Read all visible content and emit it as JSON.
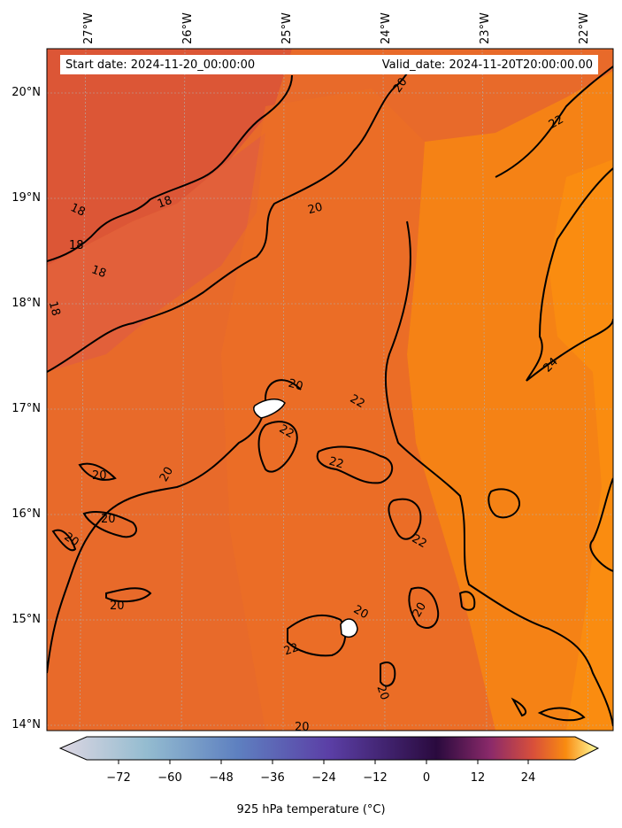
{
  "header": {
    "start_date": "Start date: 2024-11-20_00:00:00",
    "valid_date": "Valid_date: 2024-11-20T20:00:00.00"
  },
  "map": {
    "lat_labels": [
      "20°N",
      "19°N",
      "18°N",
      "17°N",
      "16°N",
      "15°N",
      "14°N"
    ],
    "lon_labels": [
      "27°W",
      "26°W",
      "25°W",
      "24°W",
      "23°W",
      "22°W"
    ],
    "contour_labels": [
      "20",
      "22",
      "18",
      "18",
      "18",
      "18",
      "18",
      "20",
      "20",
      "22",
      "20",
      "22",
      "22",
      "20",
      "20",
      "20",
      "20",
      "22",
      "20",
      "20",
      "20",
      "20",
      "24",
      "22",
      "20"
    ],
    "colors": {
      "cold_region": "#d9503a",
      "mid_region": "#e86a2a",
      "warm_region": "#f98b10",
      "contour": "#000000",
      "grid": "#b0b0b0"
    }
  },
  "colorbar": {
    "ticks": [
      "−72",
      "−60",
      "−48",
      "−36",
      "−24",
      "−12",
      "0",
      "12",
      "24"
    ],
    "label": "925 hPa temperature (°C)",
    "stops": [
      "#ddd6e2",
      "#94bcd0",
      "#5e80c0",
      "#5b3fa6",
      "#2a0a3e",
      "#8b2a6a",
      "#d9503a",
      "#f98b10",
      "#ffffa0"
    ]
  }
}
